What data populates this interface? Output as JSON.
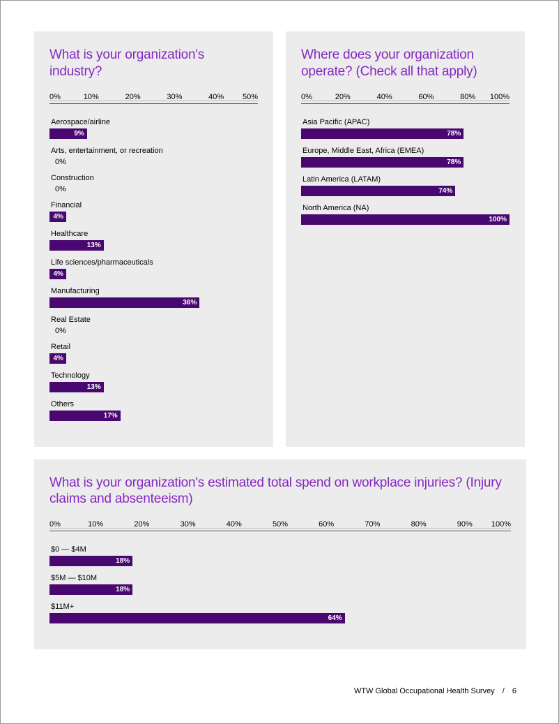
{
  "colors": {
    "panel_bg": "#ececec",
    "title": "#8527c3",
    "bar": "#48086f",
    "bar_text": "#ffffff",
    "axis_line": "#555555",
    "text": "#000000"
  },
  "industry": {
    "title": "What is your organization's industry?",
    "type": "bar",
    "xmax": 50,
    "ticks": [
      "0%",
      "10%",
      "20%",
      "30%",
      "40%",
      "50%"
    ],
    "rows": [
      {
        "label": "Aerospace/airline",
        "value": 9,
        "display": "9%"
      },
      {
        "label": "Arts, entertainment, or recreation",
        "value": 0,
        "display": "0%"
      },
      {
        "label": "Construction",
        "value": 0,
        "display": "0%"
      },
      {
        "label": "Financial",
        "value": 4,
        "display": "4%"
      },
      {
        "label": "Healthcare",
        "value": 13,
        "display": "13%"
      },
      {
        "label": "Life sciences/pharmaceuticals",
        "value": 4,
        "display": "4%"
      },
      {
        "label": "Manufacturing",
        "value": 36,
        "display": "36%"
      },
      {
        "label": "Real Estate",
        "value": 0,
        "display": "0%"
      },
      {
        "label": "Retail",
        "value": 4,
        "display": "4%"
      },
      {
        "label": "Technology",
        "value": 13,
        "display": "13%"
      },
      {
        "label": "Others",
        "value": 17,
        "display": "17%"
      }
    ]
  },
  "operate": {
    "title": "Where does your organization operate? (Check all that apply)",
    "type": "bar",
    "xmax": 100,
    "ticks": [
      "0%",
      "20%",
      "40%",
      "60%",
      "80%",
      "100%"
    ],
    "rows": [
      {
        "label": "Asia Pacific (APAC)",
        "value": 78,
        "display": "78%"
      },
      {
        "label": "Europe, Middle East, Africa (EMEA)",
        "value": 78,
        "display": "78%"
      },
      {
        "label": "Latin America (LATAM)",
        "value": 74,
        "display": "74%"
      },
      {
        "label": "North America (NA)",
        "value": 100,
        "display": "100%"
      }
    ]
  },
  "spend": {
    "title": "What is your organization's estimated total spend on workplace injuries? (Injury claims and absenteeism)",
    "type": "bar",
    "xmax": 100,
    "ticks": [
      "0%",
      "10%",
      "20%",
      "30%",
      "40%",
      "50%",
      "60%",
      "70%",
      "80%",
      "90%",
      "100%"
    ],
    "rows": [
      {
        "label": "$0 — $4M",
        "value": 18,
        "display": "18%"
      },
      {
        "label": "$5M — $10M",
        "value": 18,
        "display": "18%"
      },
      {
        "label": "$11M+",
        "value": 64,
        "display": "64%"
      }
    ]
  },
  "footer": {
    "text": "WTW Global Occupational Health Survey",
    "page": "6"
  }
}
